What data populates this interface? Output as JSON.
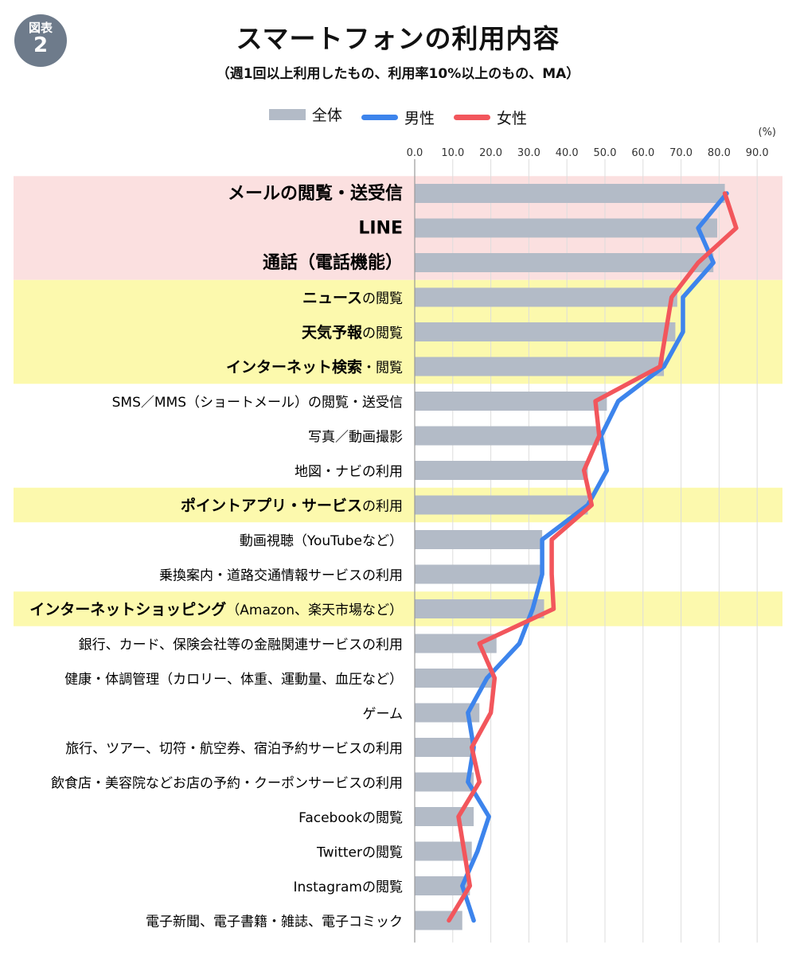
{
  "badge": {
    "line1": "図表",
    "line2": "2"
  },
  "header": {
    "title": "スマートフォンの利用内容",
    "subtitle": "（週1回以上利用したもの、利用率10%以上のもの、MA）"
  },
  "colors": {
    "bar": "#b3bbc7",
    "male": "#3d84ec",
    "female": "#f2565c",
    "pink_band": "#fbe0e0",
    "yellow_band": "#fcf9ad",
    "grid": "#dddddd"
  },
  "chart_data": {
    "type": "bar",
    "orientation": "horizontal",
    "unit": "(%)",
    "xlim": [
      0,
      90
    ],
    "ticks": [
      "0.0",
      "10.0",
      "20.0",
      "30.0",
      "40.0",
      "50.0",
      "60.0",
      "70.0",
      "80.0",
      "90.0"
    ],
    "tick_values": [
      0,
      10,
      20,
      30,
      40,
      50,
      60,
      70,
      80,
      90
    ],
    "grid": true,
    "legend_position": "top",
    "categories": [
      {
        "bold": "メールの閲覧・送受信",
        "normal": "",
        "highlight": "pink",
        "size": "large"
      },
      {
        "bold": "LINE",
        "normal": "",
        "highlight": "pink",
        "size": "large"
      },
      {
        "bold": "通話（電話機能）",
        "normal": "",
        "highlight": "pink",
        "size": "large"
      },
      {
        "bold": "ニュース",
        "normal": "の閲覧",
        "highlight": "yellow",
        "size": "normal"
      },
      {
        "bold": "天気予報",
        "normal": "の閲覧",
        "highlight": "yellow",
        "size": "normal"
      },
      {
        "bold": "インターネット検索",
        "normal": "・閲覧",
        "highlight": "yellow",
        "size": "normal"
      },
      {
        "bold": "",
        "normal": "SMS／MMS（ショートメール）の閲覧・送受信",
        "highlight": "none",
        "size": "normal"
      },
      {
        "bold": "",
        "normal": "写真／動画撮影",
        "highlight": "none",
        "size": "normal"
      },
      {
        "bold": "",
        "normal": "地図・ナビの利用",
        "highlight": "none",
        "size": "normal"
      },
      {
        "bold": "ポイントアプリ・サービス",
        "normal": "の利用",
        "highlight": "yellow",
        "size": "normal"
      },
      {
        "bold": "",
        "normal": "動画視聴（YouTubeなど）",
        "highlight": "none",
        "size": "normal"
      },
      {
        "bold": "",
        "normal": "乗換案内・道路交通情報サービスの利用",
        "highlight": "none",
        "size": "normal"
      },
      {
        "bold": "インターネットショッピング",
        "normal": "（Amazon、楽天市場など）",
        "highlight": "yellow",
        "size": "normal"
      },
      {
        "bold": "",
        "normal": "銀行、カード、保険会社等の金融関連サービスの利用",
        "highlight": "none",
        "size": "normal"
      },
      {
        "bold": "",
        "normal": "健康・体調管理（カロリー、体重、運動量、血圧など）",
        "highlight": "none",
        "size": "normal"
      },
      {
        "bold": "",
        "normal": "ゲーム",
        "highlight": "none",
        "size": "normal"
      },
      {
        "bold": "",
        "normal": "旅行、ツアー、切符・航空券、宿泊予約サービスの利用",
        "highlight": "none",
        "size": "normal"
      },
      {
        "bold": "",
        "normal": "飲食店・美容院などお店の予約・クーポンサービスの利用",
        "highlight": "none",
        "size": "normal"
      },
      {
        "bold": "",
        "normal": "Facebookの閲覧",
        "highlight": "none",
        "size": "normal"
      },
      {
        "bold": "",
        "normal": "Twitterの閲覧",
        "highlight": "none",
        "size": "normal"
      },
      {
        "bold": "",
        "normal": "Instagramの閲覧",
        "highlight": "none",
        "size": "normal"
      },
      {
        "bold": "",
        "normal": "電子新聞、電子書籍・雑誌、電子コミック",
        "highlight": "none",
        "size": "normal"
      }
    ],
    "series": [
      {
        "name": "全体",
        "kind": "bar",
        "values": [
          81.5,
          79.5,
          78.5,
          69.0,
          68.5,
          65.5,
          50.5,
          48.5,
          45.5,
          45.5,
          33.5,
          33.5,
          34.0,
          21.5,
          20.5,
          17.0,
          15.5,
          15.5,
          15.5,
          15.0,
          14.5,
          12.5
        ]
      },
      {
        "name": "男性",
        "kind": "line",
        "values": [
          82.0,
          74.5,
          78.5,
          70.5,
          70.5,
          65.5,
          53.5,
          49.0,
          50.5,
          45.5,
          33.5,
          33.5,
          31.0,
          27.5,
          19.0,
          14.0,
          15.5,
          14.0,
          19.5,
          16.5,
          12.5,
          15.5
        ]
      },
      {
        "name": "女性",
        "kind": "line",
        "values": [
          81.5,
          84.5,
          74.5,
          67.5,
          66.0,
          64.5,
          47.5,
          48.5,
          44.5,
          46.5,
          36.0,
          36.0,
          36.5,
          17.0,
          21.0,
          20.0,
          15.0,
          17.0,
          11.5,
          13.0,
          14.5,
          9.0
        ]
      }
    ]
  }
}
